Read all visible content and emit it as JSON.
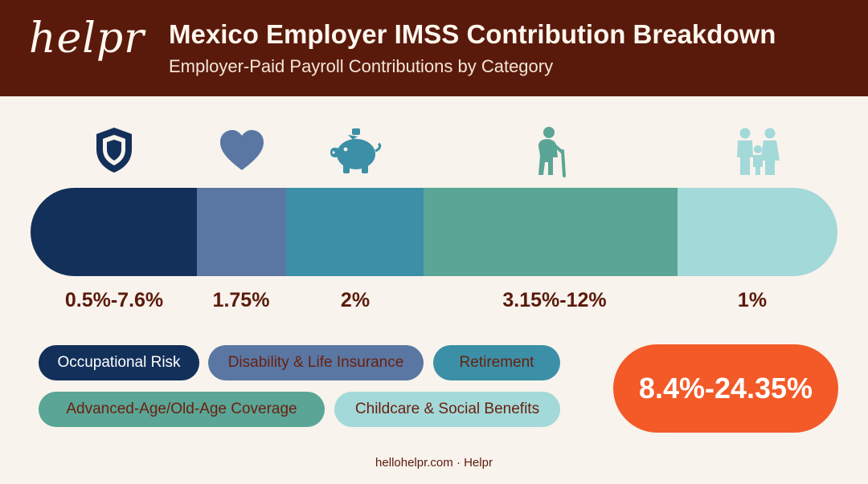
{
  "brand": {
    "logo": "helpr"
  },
  "header": {
    "title": "Mexico Employer IMSS Contribution Breakdown",
    "subtitle": "Employer-Paid Payroll Contributions by Category"
  },
  "chart_data": {
    "type": "bar",
    "orientation": "horizontal-stacked",
    "categories": [
      "Occupational Risk",
      "Disability & Life Insurance",
      "Retirement",
      "Advanced-Age/Old-Age Coverage",
      "Childcare & Social Benefits"
    ],
    "value_labels": [
      "0.5%-7.6%",
      "1.75%",
      "2%",
      "3.15%-12%",
      "1%"
    ],
    "values_min": [
      0.5,
      1.75,
      2,
      3.15,
      1
    ],
    "values_max": [
      7.6,
      1.75,
      2,
      12,
      1
    ],
    "icons": [
      "shield-icon",
      "heart-icon",
      "piggy-bank-icon",
      "elderly-person-icon",
      "family-icon"
    ],
    "colors": [
      "#13305a",
      "#5a77a3",
      "#3b8fa6",
      "#5aa595",
      "#a3d9d8"
    ],
    "legend_text_colors": [
      "#ffffff",
      "#6a1f0f",
      "#6a1f0f",
      "#6a1f0f",
      "#6a1f0f"
    ],
    "total": "8.4%-24.35%",
    "total_color": "#f35a28"
  },
  "footer": {
    "text": "hellohelpr.com · Helpr"
  }
}
